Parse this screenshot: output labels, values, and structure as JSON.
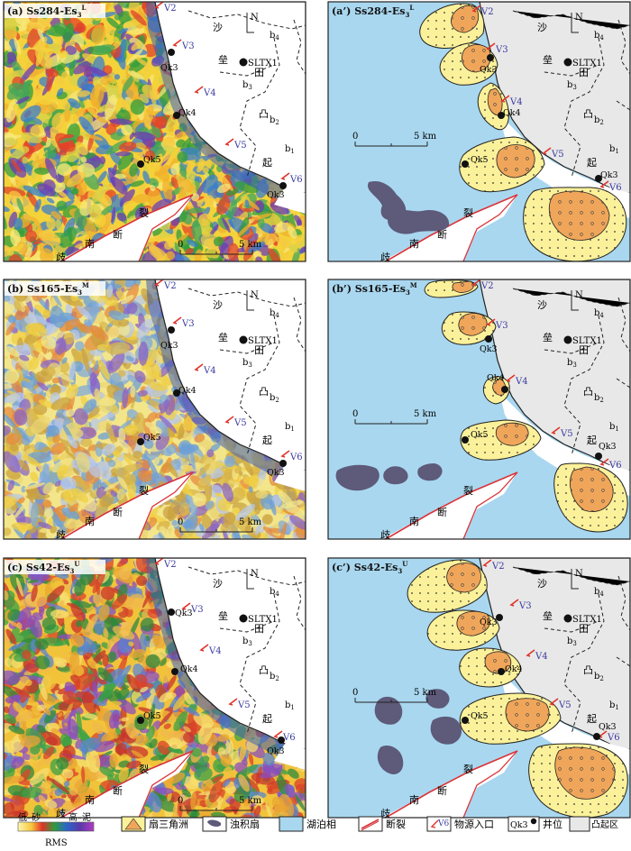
{
  "panels": [
    {
      "id": "a",
      "type": "rms",
      "title_prefix": "(a) Ss284-Es",
      "title_sub": "3",
      "title_sup": "L"
    },
    {
      "id": "a2",
      "type": "facies",
      "title_prefix": "(a’) Ss284-Es",
      "title_sub": "3",
      "title_sup": "L"
    },
    {
      "id": "b",
      "type": "rms",
      "title_prefix": "(b) Ss165-Es",
      "title_sub": "3",
      "title_sup": "M"
    },
    {
      "id": "b2",
      "type": "facies",
      "title_prefix": "(b’) Ss165-Es",
      "title_sub": "3",
      "title_sup": "M"
    },
    {
      "id": "c",
      "type": "rms",
      "title_prefix": "(c) Ss42-Es",
      "title_sub": "3",
      "title_sup": "U"
    },
    {
      "id": "c2",
      "type": "facies",
      "title_prefix": "(c’) Ss42-Es",
      "title_sub": "3",
      "title_sup": "U"
    }
  ],
  "map_labels": {
    "sources": [
      "V2",
      "V3",
      "V4",
      "V5",
      "V6"
    ],
    "wells": [
      "Qk3",
      "Qk4",
      "Qk5",
      "Qk3"
    ],
    "ltx_well": "SLTX1",
    "north": "N",
    "uplift_chars": [
      "沙",
      "垒",
      "田",
      "凸",
      "起"
    ],
    "blocks": [
      "b4",
      "b3",
      "b2",
      "b1"
    ],
    "fault_chars": [
      "裂",
      "断",
      "南",
      "歧"
    ],
    "scale_zero": "0",
    "scale_label": "5 km"
  },
  "legend": {
    "rms_low": "低–砂",
    "rms_high": "高–泥",
    "rms_title": "RMS",
    "items": [
      {
        "key": "fan_delta",
        "label": "扇三角洲"
      },
      {
        "key": "turbidite",
        "label": "浊积扇"
      },
      {
        "key": "lake",
        "label": "湖泊相"
      },
      {
        "key": "fault",
        "label": "断裂"
      },
      {
        "key": "source",
        "label": "物源入口",
        "sample": "V6"
      },
      {
        "key": "well",
        "label": "井位",
        "sample": "Qk3"
      },
      {
        "key": "uplift",
        "label": "凸起区"
      }
    ]
  },
  "colors": {
    "lake": "#a9d7ef",
    "uplift": "#e8e8e8",
    "fan_outer": "#fbf19a",
    "fan_inner": "#f0a65a",
    "turbidite": "#5d5a7a",
    "source_arrow": "#e0332a",
    "source_text": "#3a3aa0",
    "fault": "#d9343a"
  }
}
